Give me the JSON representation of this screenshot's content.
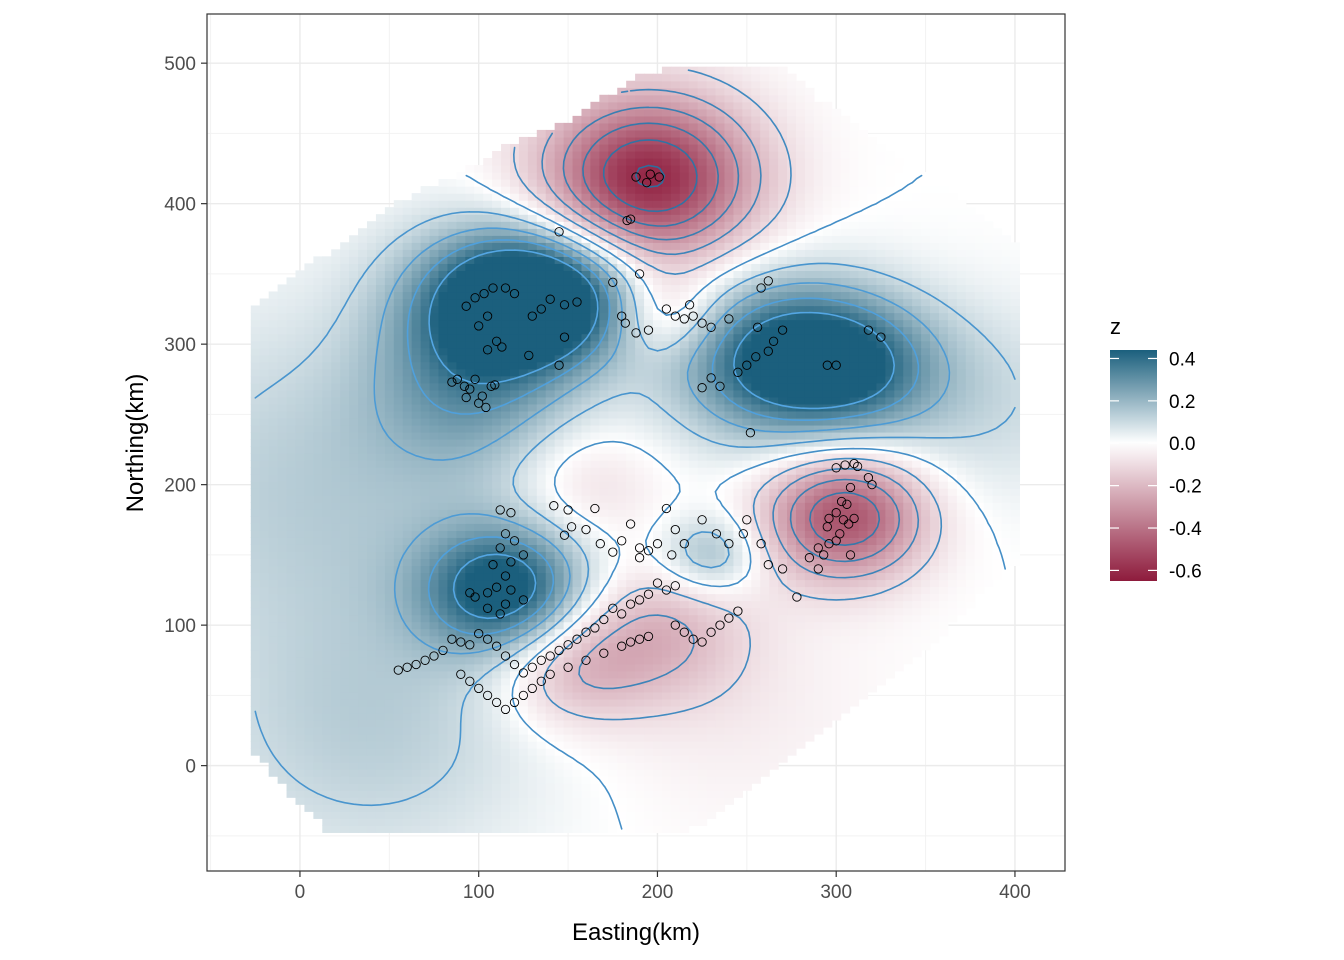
{
  "chart_data": {
    "type": "heatmap",
    "xlabel": "Easting(km)",
    "ylabel": "Northing(km)",
    "xlim": [
      -52,
      428
    ],
    "ylim": [
      -75,
      535
    ],
    "x_ticks": [
      0,
      100,
      200,
      300,
      400
    ],
    "y_ticks": [
      0,
      100,
      200,
      300,
      400,
      500
    ],
    "x_tick_labels": [
      "0",
      "100",
      "200",
      "300",
      "400"
    ],
    "y_tick_labels": [
      "0",
      "100",
      "200",
      "300",
      "400",
      "500"
    ],
    "grid": true,
    "legend": {
      "title": "z",
      "position": "right",
      "breaks": [
        0.4,
        0.2,
        0.0,
        -0.2,
        -0.4,
        -0.6
      ],
      "labels": [
        "0.4",
        "0.2",
        "0.0",
        "-0.2",
        "-0.4",
        "-0.6"
      ],
      "range": [
        -0.65,
        0.44
      ]
    },
    "colors": {
      "high": "#1b5f7d",
      "mid": "#ffffff",
      "low": "#8e1b3c",
      "contour_low": "#2b6b9a",
      "contour_high": "#56a8e6",
      "points": "#000000"
    },
    "domain_polygon": [
      [
        -25,
        45
      ],
      [
        -25,
        325
      ],
      [
        10,
        360
      ],
      [
        50,
        398
      ],
      [
        90,
        422
      ],
      [
        115,
        440
      ],
      [
        145,
        455
      ],
      [
        170,
        475
      ],
      [
        190,
        490
      ],
      [
        215,
        500
      ],
      [
        270,
        500
      ],
      [
        290,
        475
      ],
      [
        340,
        430
      ],
      [
        370,
        405
      ],
      [
        405,
        370
      ],
      [
        405,
        235
      ],
      [
        405,
        150
      ],
      [
        380,
        120
      ],
      [
        350,
        80
      ],
      [
        320,
        50
      ],
      [
        290,
        20
      ],
      [
        255,
        -15
      ],
      [
        220,
        -45
      ],
      [
        15,
        -45
      ],
      [
        -5,
        -20
      ],
      [
        -25,
        10
      ]
    ],
    "field_components": [
      {
        "x": 195,
        "y": 418,
        "amplitude": -0.62,
        "sigma": 42
      },
      {
        "x": 305,
        "y": 178,
        "amplitude": -0.5,
        "sigma": 32
      },
      {
        "x": 150,
        "y": 70,
        "amplitude": -0.2,
        "sigma": 30
      },
      {
        "x": 200,
        "y": 95,
        "amplitude": -0.2,
        "sigma": 35
      },
      {
        "x": 110,
        "y": 330,
        "amplitude": 0.45,
        "sigma": 38
      },
      {
        "x": 145,
        "y": 335,
        "amplitude": 0.38,
        "sigma": 32
      },
      {
        "x": 95,
        "y": 265,
        "amplitude": 0.18,
        "sigma": 40
      },
      {
        "x": 265,
        "y": 290,
        "amplitude": 0.42,
        "sigma": 40
      },
      {
        "x": 310,
        "y": 285,
        "amplitude": 0.3,
        "sigma": 35
      },
      {
        "x": 115,
        "y": 125,
        "amplitude": 0.45,
        "sigma": 32
      },
      {
        "x": 230,
        "y": 150,
        "amplitude": 0.2,
        "sigma": 20
      },
      {
        "x": 20,
        "y": 200,
        "amplitude": 0.14,
        "sigma": 90
      },
      {
        "x": 40,
        "y": 20,
        "amplitude": 0.12,
        "sigma": 70
      },
      {
        "x": 380,
        "y": 260,
        "amplitude": 0.1,
        "sigma": 50
      },
      {
        "x": 160,
        "y": 200,
        "amplitude": -0.12,
        "sigma": 30
      },
      {
        "x": 205,
        "y": 320,
        "amplitude": -0.15,
        "sigma": 22
      },
      {
        "x": 240,
        "y": 40,
        "amplitude": -0.05,
        "sigma": 60
      }
    ],
    "contour_levels": [
      -0.6,
      -0.5,
      -0.4,
      -0.3,
      -0.2,
      -0.1,
      0.0,
      0.1,
      0.2,
      0.3,
      0.4
    ],
    "points": [
      [
        188,
        419
      ],
      [
        196,
        421
      ],
      [
        201,
        419
      ],
      [
        194,
        415
      ],
      [
        185,
        389
      ],
      [
        183,
        388
      ],
      [
        145,
        380
      ],
      [
        190,
        350
      ],
      [
        175,
        344
      ],
      [
        155,
        330
      ],
      [
        148,
        328
      ],
      [
        140,
        332
      ],
      [
        135,
        325
      ],
      [
        130,
        320
      ],
      [
        120,
        336
      ],
      [
        115,
        340
      ],
      [
        108,
        340
      ],
      [
        103,
        336
      ],
      [
        98,
        333
      ],
      [
        93,
        327
      ],
      [
        105,
        320
      ],
      [
        100,
        313
      ],
      [
        110,
        302
      ],
      [
        113,
        298
      ],
      [
        105,
        296
      ],
      [
        148,
        305
      ],
      [
        128,
        292
      ],
      [
        145,
        285
      ],
      [
        88,
        275
      ],
      [
        92,
        270
      ],
      [
        85,
        273
      ],
      [
        98,
        275
      ],
      [
        93,
        262
      ],
      [
        100,
        258
      ],
      [
        104,
        255
      ],
      [
        102,
        263
      ],
      [
        107,
        270
      ],
      [
        109,
        271
      ],
      [
        95,
        268
      ],
      [
        180,
        320
      ],
      [
        182,
        315
      ],
      [
        188,
        308
      ],
      [
        195,
        310
      ],
      [
        205,
        325
      ],
      [
        210,
        320
      ],
      [
        215,
        318
      ],
      [
        218,
        328
      ],
      [
        220,
        320
      ],
      [
        225,
        315
      ],
      [
        230,
        312
      ],
      [
        240,
        318
      ],
      [
        256,
        312
      ],
      [
        258,
        340
      ],
      [
        262,
        345
      ],
      [
        265,
        302
      ],
      [
        270,
        310
      ],
      [
        262,
        295
      ],
      [
        255,
        291
      ],
      [
        250,
        285
      ],
      [
        245,
        280
      ],
      [
        235,
        270
      ],
      [
        230,
        276
      ],
      [
        225,
        269
      ],
      [
        295,
        285
      ],
      [
        300,
        285
      ],
      [
        318,
        310
      ],
      [
        325,
        305
      ],
      [
        252,
        237
      ],
      [
        300,
        212
      ],
      [
        305,
        214
      ],
      [
        310,
        215
      ],
      [
        312,
        213
      ],
      [
        318,
        205
      ],
      [
        320,
        200
      ],
      [
        308,
        198
      ],
      [
        303,
        188
      ],
      [
        306,
        186
      ],
      [
        300,
        180
      ],
      [
        296,
        176
      ],
      [
        304,
        175
      ],
      [
        310,
        176
      ],
      [
        295,
        170
      ],
      [
        302,
        165
      ],
      [
        307,
        172
      ],
      [
        300,
        160
      ],
      [
        296,
        158
      ],
      [
        293,
        150
      ],
      [
        290,
        155
      ],
      [
        285,
        148
      ],
      [
        290,
        140
      ],
      [
        308,
        150
      ],
      [
        278,
        120
      ],
      [
        142,
        185
      ],
      [
        150,
        182
      ],
      [
        165,
        183
      ],
      [
        152,
        170
      ],
      [
        148,
        164
      ],
      [
        160,
        168
      ],
      [
        168,
        158
      ],
      [
        175,
        152
      ],
      [
        180,
        160
      ],
      [
        185,
        172
      ],
      [
        190,
        155
      ],
      [
        195,
        153
      ],
      [
        200,
        158
      ],
      [
        205,
        183
      ],
      [
        208,
        150
      ],
      [
        210,
        168
      ],
      [
        215,
        158
      ],
      [
        190,
        148
      ],
      [
        225,
        175
      ],
      [
        233,
        165
      ],
      [
        240,
        158
      ],
      [
        248,
        165
      ],
      [
        250,
        175
      ],
      [
        258,
        158
      ],
      [
        262,
        143
      ],
      [
        270,
        140
      ],
      [
        112,
        182
      ],
      [
        118,
        180
      ],
      [
        115,
        165
      ],
      [
        120,
        160
      ],
      [
        112,
        155
      ],
      [
        125,
        150
      ],
      [
        118,
        145
      ],
      [
        108,
        143
      ],
      [
        115,
        135
      ],
      [
        110,
        127
      ],
      [
        105,
        123
      ],
      [
        118,
        125
      ],
      [
        125,
        118
      ],
      [
        115,
        115
      ],
      [
        112,
        108
      ],
      [
        105,
        112
      ],
      [
        98,
        120
      ],
      [
        95,
        123
      ],
      [
        200,
        130
      ],
      [
        205,
        125
      ],
      [
        210,
        128
      ],
      [
        195,
        122
      ],
      [
        190,
        118
      ],
      [
        185,
        115
      ],
      [
        180,
        108
      ],
      [
        175,
        112
      ],
      [
        170,
        104
      ],
      [
        165,
        98
      ],
      [
        160,
        95
      ],
      [
        155,
        90
      ],
      [
        150,
        86
      ],
      [
        145,
        82
      ],
      [
        140,
        78
      ],
      [
        135,
        75
      ],
      [
        130,
        70
      ],
      [
        125,
        66
      ],
      [
        120,
        72
      ],
      [
        115,
        78
      ],
      [
        110,
        85
      ],
      [
        105,
        90
      ],
      [
        100,
        94
      ],
      [
        95,
        86
      ],
      [
        90,
        88
      ],
      [
        85,
        90
      ],
      [
        80,
        82
      ],
      [
        75,
        78
      ],
      [
        70,
        75
      ],
      [
        65,
        72
      ],
      [
        60,
        70
      ],
      [
        55,
        68
      ],
      [
        90,
        65
      ],
      [
        95,
        60
      ],
      [
        100,
        55
      ],
      [
        105,
        50
      ],
      [
        110,
        45
      ],
      [
        115,
        40
      ],
      [
        120,
        45
      ],
      [
        125,
        50
      ],
      [
        130,
        55
      ],
      [
        135,
        60
      ],
      [
        140,
        65
      ],
      [
        150,
        70
      ],
      [
        160,
        75
      ],
      [
        170,
        80
      ],
      [
        180,
        85
      ],
      [
        185,
        88
      ],
      [
        190,
        90
      ],
      [
        195,
        92
      ],
      [
        210,
        100
      ],
      [
        215,
        95
      ],
      [
        220,
        90
      ],
      [
        225,
        88
      ],
      [
        230,
        95
      ],
      [
        235,
        100
      ],
      [
        240,
        105
      ],
      [
        245,
        110
      ]
    ]
  }
}
